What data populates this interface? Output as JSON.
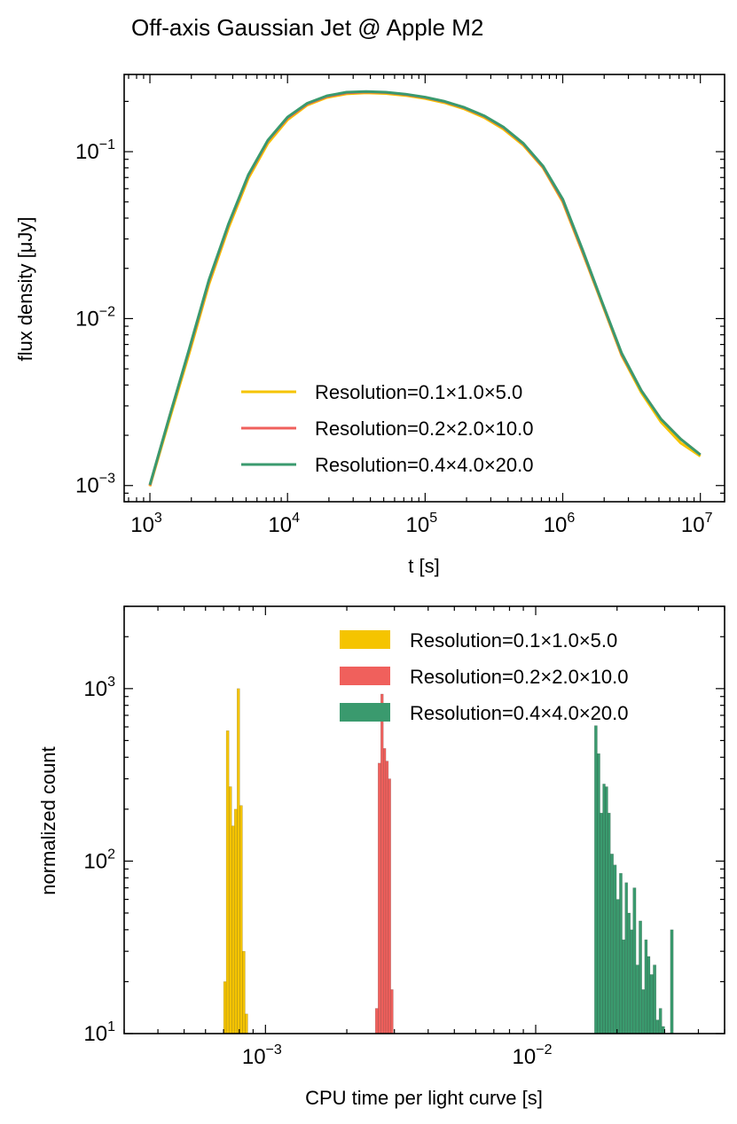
{
  "figure_title": "Off-axis Gaussian Jet @ Apple M2",
  "colors": {
    "res1": "#f5c400",
    "res2": "#f0605c",
    "res3": "#3a9a6e",
    "axis": "#000000"
  },
  "chart_data": [
    {
      "type": "line",
      "xscale": "log",
      "yscale": "log",
      "xlabel": "t [s]",
      "ylabel": "flux density [μJy]",
      "xlim": [
        650,
        15000000
      ],
      "ylim": [
        0.0008,
        0.29
      ],
      "xticks": [
        {
          "base": "10",
          "exp": "3",
          "value": 1000
        },
        {
          "base": "10",
          "exp": "4",
          "value": 10000
        },
        {
          "base": "10",
          "exp": "5",
          "value": 100000
        },
        {
          "base": "10",
          "exp": "6",
          "value": 1000000
        },
        {
          "base": "10",
          "exp": "7",
          "value": 10000000
        }
      ],
      "yticks": [
        {
          "base": "10",
          "exp": "−3",
          "value": 0.001
        },
        {
          "base": "10",
          "exp": "−2",
          "value": 0.01
        },
        {
          "base": "10",
          "exp": "−1",
          "value": 0.1
        }
      ],
      "legend_position": "lower-center",
      "x": [
        1000,
        1389,
        1931,
        2683,
        3728,
        5179,
        7197,
        10000,
        13895,
        19307,
        26827,
        37276,
        51795,
        71969,
        100000,
        138950,
        193070,
        268270,
        372760,
        517950,
        719690,
        1000000,
        1389500,
        1930700,
        2682700,
        3727600,
        5179500,
        7196900,
        10000000
      ],
      "series": [
        {
          "name": "Resolution=0.1×1.0×5.0",
          "color_key": "res1",
          "values": [
            0.00099,
            0.0025,
            0.0062,
            0.016,
            0.035,
            0.069,
            0.112,
            0.155,
            0.19,
            0.211,
            0.222,
            0.225,
            0.223,
            0.217,
            0.208,
            0.196,
            0.18,
            0.16,
            0.136,
            0.109,
            0.08,
            0.05,
            0.025,
            0.0123,
            0.006,
            0.0036,
            0.0024,
            0.0018,
            0.0015
          ]
        },
        {
          "name": "Resolution=0.2×2.0×10.0",
          "color_key": "res2",
          "values": [
            0.001,
            0.0026,
            0.0065,
            0.0167,
            0.0365,
            0.0715,
            0.116,
            0.159,
            0.193,
            0.214,
            0.225,
            0.228,
            0.226,
            0.22,
            0.211,
            0.199,
            0.183,
            0.163,
            0.139,
            0.111,
            0.081,
            0.051,
            0.0255,
            0.0125,
            0.0061,
            0.0037,
            0.0025,
            0.0019,
            0.00153
          ]
        },
        {
          "name": "Resolution=0.4×4.0×20.0",
          "color_key": "res3",
          "values": [
            0.00101,
            0.0026,
            0.0066,
            0.017,
            0.037,
            0.0725,
            0.117,
            0.161,
            0.195,
            0.216,
            0.227,
            0.229,
            0.227,
            0.221,
            0.212,
            0.2,
            0.184,
            0.164,
            0.14,
            0.112,
            0.082,
            0.052,
            0.026,
            0.0126,
            0.0062,
            0.0037,
            0.0025,
            0.0019,
            0.00153
          ]
        }
      ]
    },
    {
      "type": "histogram",
      "xscale": "log",
      "yscale": "log",
      "xlabel": "CPU time per light curve [s]",
      "ylabel": "normalized count",
      "xlim": [
        0.0003,
        0.05
      ],
      "ylim": [
        10,
        3000
      ],
      "xticks": [
        {
          "base": "10",
          "exp": "−3",
          "value": 0.001
        },
        {
          "base": "10",
          "exp": "−2",
          "value": 0.01
        }
      ],
      "yticks": [
        {
          "base": "10",
          "exp": "1",
          "value": 10
        },
        {
          "base": "10",
          "exp": "2",
          "value": 100
        },
        {
          "base": "10",
          "exp": "3",
          "value": 1000
        }
      ],
      "legend_position": "upper-right",
      "series": [
        {
          "name": "Resolution=0.1×1.0×5.0",
          "color_key": "res1",
          "bins": [
            [
              0.0007,
              0.000716,
              20
            ],
            [
              0.000716,
              0.000733,
              570
            ],
            [
              0.000733,
              0.00075,
              270
            ],
            [
              0.00075,
              0.000767,
              160
            ],
            [
              0.000767,
              0.000785,
              200
            ],
            [
              0.000785,
              0.000803,
              1000
            ],
            [
              0.000803,
              0.000822,
              210
            ],
            [
              0.000822,
              0.000841,
              30
            ],
            [
              0.000841,
              0.00086,
              13
            ]
          ]
        },
        {
          "name": "Resolution=0.2×2.0×10.0",
          "color_key": "res2",
          "bins": [
            [
              0.00255,
              0.00261,
              14
            ],
            [
              0.00261,
              0.00267,
              370
            ],
            [
              0.00267,
              0.00273,
              930
            ],
            [
              0.00273,
              0.00279,
              450
            ],
            [
              0.00279,
              0.00285,
              380
            ],
            [
              0.00285,
              0.00291,
              300
            ],
            [
              0.00291,
              0.00297,
              18
            ]
          ]
        },
        {
          "name": "Resolution=0.4×4.0×20.0",
          "color_key": "res3",
          "bins": [
            [
              0.0165,
              0.0169,
              610
            ],
            [
              0.0169,
              0.0173,
              420
            ],
            [
              0.0173,
              0.0177,
              190
            ],
            [
              0.0177,
              0.0181,
              280
            ],
            [
              0.0181,
              0.0185,
              270
            ],
            [
              0.0185,
              0.0189,
              190
            ],
            [
              0.0189,
              0.0194,
              110
            ],
            [
              0.0194,
              0.0199,
              95
            ],
            [
              0.0199,
              0.0204,
              60
            ],
            [
              0.0204,
              0.0209,
              85
            ],
            [
              0.0209,
              0.0214,
              35
            ],
            [
              0.0214,
              0.0219,
              75
            ],
            [
              0.0219,
              0.0224,
              50
            ],
            [
              0.0224,
              0.0229,
              40
            ],
            [
              0.0229,
              0.0235,
              70
            ],
            [
              0.0235,
              0.0241,
              25
            ],
            [
              0.0241,
              0.0247,
              45
            ],
            [
              0.0247,
              0.0253,
              18
            ],
            [
              0.0253,
              0.0259,
              35
            ],
            [
              0.0259,
              0.0265,
              28
            ],
            [
              0.0265,
              0.0272,
              22
            ],
            [
              0.0272,
              0.0279,
              25
            ],
            [
              0.0279,
              0.0286,
              12
            ],
            [
              0.0286,
              0.0293,
              14
            ],
            [
              0.0293,
              0.03,
              11
            ],
            [
              0.0315,
              0.0323,
              40
            ]
          ]
        }
      ]
    }
  ]
}
